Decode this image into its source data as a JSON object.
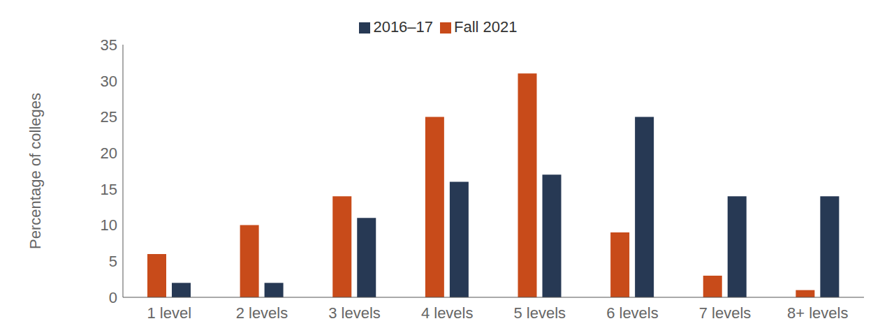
{
  "chart_data": {
    "type": "bar",
    "y_label": "Percentage of colleges",
    "categories": [
      "1 level",
      "2 levels",
      "3 levels",
      "4 levels",
      "5 levels",
      "6 levels",
      "7 levels",
      "8+ levels"
    ],
    "series": [
      {
        "name": "Fall 2021",
        "color": "#c84b1a",
        "values": [
          6,
          10,
          14,
          25,
          31,
          9,
          3,
          1
        ]
      },
      {
        "name": "2016–17",
        "color": "#273954",
        "values": [
          2,
          2,
          11,
          16,
          17,
          25,
          14,
          14
        ]
      }
    ],
    "ylim": [
      0,
      35
    ],
    "yticks": [
      0,
      5,
      10,
      15,
      20,
      25,
      30,
      35
    ],
    "grid": false,
    "legend": "top"
  }
}
